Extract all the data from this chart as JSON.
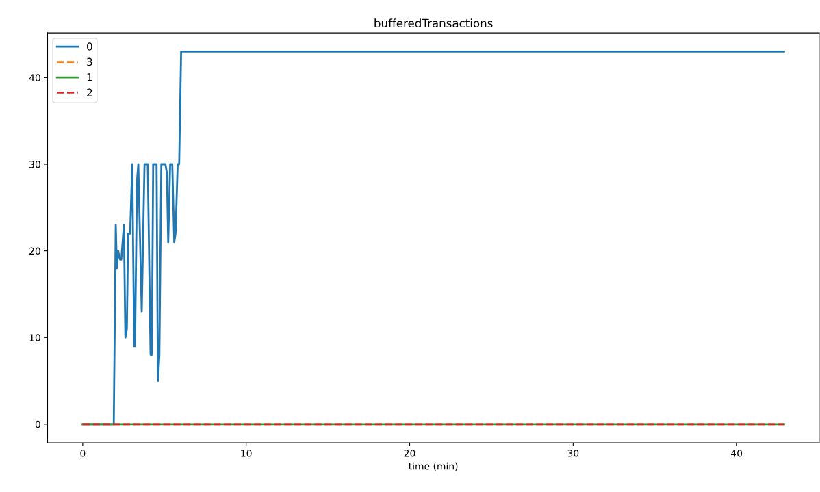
{
  "chart_data": {
    "type": "line",
    "title": "bufferedTransactions",
    "xlabel": "time (min)",
    "xlim": [
      -2.15,
      45.05
    ],
    "xticks": [
      0,
      10,
      20,
      30,
      40
    ],
    "ylim": [
      -2.15,
      45.15
    ],
    "yticks": [
      0,
      10,
      20,
      30,
      40
    ],
    "grid": false,
    "legend": "top left",
    "marker": "none",
    "series": [
      {
        "name": "0",
        "color": "#1f77b4",
        "line_style": "solid",
        "x": [
          0,
          1.9,
          2.02,
          2.09,
          2.17,
          2.28,
          2.36,
          2.52,
          2.61,
          2.7,
          2.78,
          2.9,
          3.03,
          3.15,
          3.2,
          3.32,
          3.4,
          3.61,
          3.78,
          3.98,
          4.15,
          4.23,
          4.31,
          4.52,
          4.6,
          4.69,
          4.81,
          5.06,
          5.15,
          5.23,
          5.35,
          5.48,
          5.6,
          5.68,
          5.81,
          5.9,
          6.02,
          42.9
        ],
        "values": [
          0,
          0,
          23,
          18,
          20,
          19,
          19,
          23,
          10,
          11,
          22,
          22,
          30,
          9,
          9,
          28,
          30,
          13,
          30,
          30,
          8,
          8,
          30,
          30,
          5,
          8,
          30,
          30,
          29,
          21,
          30,
          30,
          21,
          22,
          30,
          30,
          43,
          43
        ]
      },
      {
        "name": "3",
        "color": "#ff7f0e",
        "line_style": "dashed",
        "values": [
          null,
          null
        ]
      },
      {
        "name": "1",
        "color": "#2ca02c",
        "line_style": "solid",
        "x": [
          0,
          42.9
        ],
        "values": [
          0,
          0
        ]
      },
      {
        "name": "2",
        "color": "#d62728",
        "line_style": "dashed",
        "x": [
          0,
          42.9
        ],
        "values": [
          0,
          0
        ]
      }
    ]
  }
}
